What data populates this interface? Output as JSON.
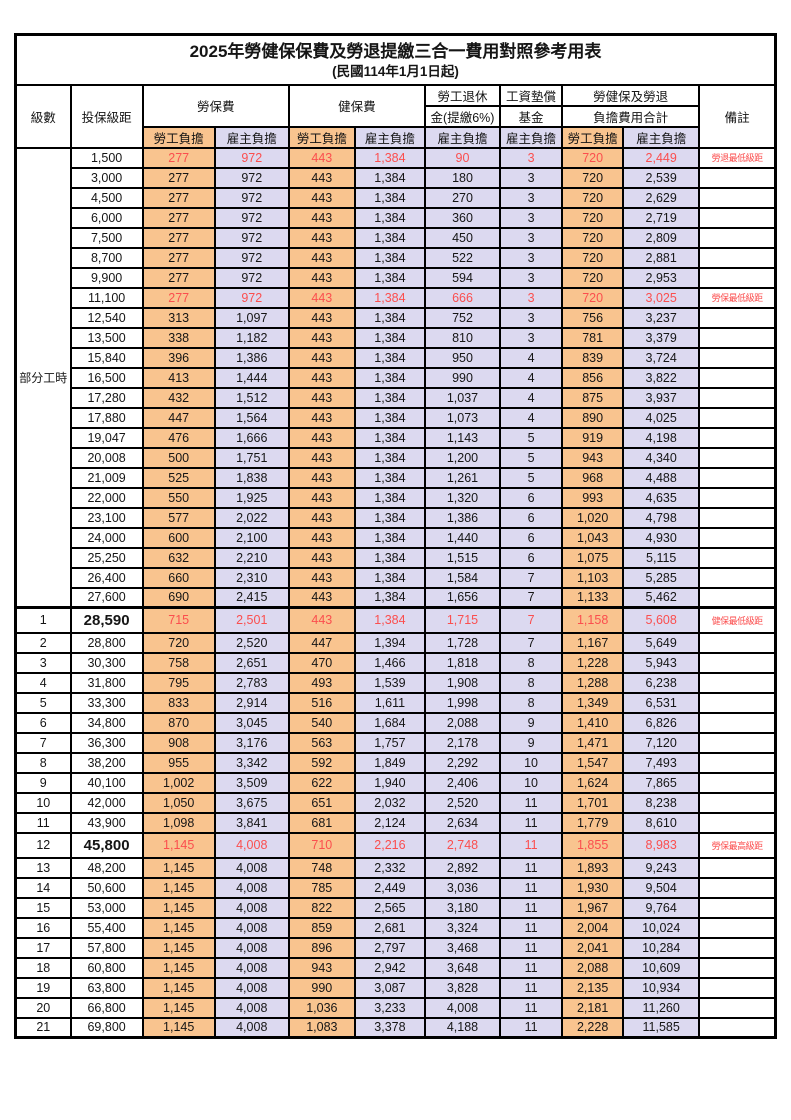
{
  "page": {
    "title": "2025年勞健保保費及勞退提繳三合一費用對照參考用表",
    "subtitle": "(民國114年1月1日起)"
  },
  "header": {
    "level": "級數",
    "bracket": "投保級距",
    "labor_fee": "勞保費",
    "health_fee": "健保費",
    "pension_line1": "勞工退休",
    "pension_line2": "金(提繳6%)",
    "wage_fund_line1": "工資墊償",
    "wage_fund_line2": "基金",
    "total_line1": "勞健保及勞退",
    "total_line2": "負擔費用合計",
    "remark": "備註",
    "employee": "勞工負擔",
    "employer": "雇主負擔"
  },
  "part_time_label": "部分工時",
  "colors": {
    "employee_bg": "#f9c48f",
    "employer_bg": "#dcd9f0",
    "highlight_text": "#fb4e4e",
    "border": "#000000"
  },
  "rows": [
    {
      "level": "",
      "bracket": "1,500",
      "labor_emp": "277",
      "labor_er": "972",
      "health_emp": "443",
      "health_er": "1,384",
      "pension": "90",
      "fund": "3",
      "total_emp": "720",
      "total_er": "2,449",
      "remark": "勞退最低級距",
      "highlight": true,
      "emphasis": false
    },
    {
      "level": "",
      "bracket": "3,000",
      "labor_emp": "277",
      "labor_er": "972",
      "health_emp": "443",
      "health_er": "1,384",
      "pension": "180",
      "fund": "3",
      "total_emp": "720",
      "total_er": "2,539",
      "remark": "",
      "highlight": false,
      "emphasis": false
    },
    {
      "level": "",
      "bracket": "4,500",
      "labor_emp": "277",
      "labor_er": "972",
      "health_emp": "443",
      "health_er": "1,384",
      "pension": "270",
      "fund": "3",
      "total_emp": "720",
      "total_er": "2,629",
      "remark": "",
      "highlight": false,
      "emphasis": false
    },
    {
      "level": "",
      "bracket": "6,000",
      "labor_emp": "277",
      "labor_er": "972",
      "health_emp": "443",
      "health_er": "1,384",
      "pension": "360",
      "fund": "3",
      "total_emp": "720",
      "total_er": "2,719",
      "remark": "",
      "highlight": false,
      "emphasis": false
    },
    {
      "level": "",
      "bracket": "7,500",
      "labor_emp": "277",
      "labor_er": "972",
      "health_emp": "443",
      "health_er": "1,384",
      "pension": "450",
      "fund": "3",
      "total_emp": "720",
      "total_er": "2,809",
      "remark": "",
      "highlight": false,
      "emphasis": false
    },
    {
      "level": "",
      "bracket": "8,700",
      "labor_emp": "277",
      "labor_er": "972",
      "health_emp": "443",
      "health_er": "1,384",
      "pension": "522",
      "fund": "3",
      "total_emp": "720",
      "total_er": "2,881",
      "remark": "",
      "highlight": false,
      "emphasis": false
    },
    {
      "level": "",
      "bracket": "9,900",
      "labor_emp": "277",
      "labor_er": "972",
      "health_emp": "443",
      "health_er": "1,384",
      "pension": "594",
      "fund": "3",
      "total_emp": "720",
      "total_er": "2,953",
      "remark": "",
      "highlight": false,
      "emphasis": false
    },
    {
      "level": "",
      "bracket": "11,100",
      "labor_emp": "277",
      "labor_er": "972",
      "health_emp": "443",
      "health_er": "1,384",
      "pension": "666",
      "fund": "3",
      "total_emp": "720",
      "total_er": "3,025",
      "remark": "勞保最低級距",
      "highlight": true,
      "emphasis": false
    },
    {
      "level": "",
      "bracket": "12,540",
      "labor_emp": "313",
      "labor_er": "1,097",
      "health_emp": "443",
      "health_er": "1,384",
      "pension": "752",
      "fund": "3",
      "total_emp": "756",
      "total_er": "3,237",
      "remark": "",
      "highlight": false,
      "emphasis": false
    },
    {
      "level": "",
      "bracket": "13,500",
      "labor_emp": "338",
      "labor_er": "1,182",
      "health_emp": "443",
      "health_er": "1,384",
      "pension": "810",
      "fund": "3",
      "total_emp": "781",
      "total_er": "3,379",
      "remark": "",
      "highlight": false,
      "emphasis": false
    },
    {
      "level": "",
      "bracket": "15,840",
      "labor_emp": "396",
      "labor_er": "1,386",
      "health_emp": "443",
      "health_er": "1,384",
      "pension": "950",
      "fund": "4",
      "total_emp": "839",
      "total_er": "3,724",
      "remark": "",
      "highlight": false,
      "emphasis": false
    },
    {
      "level": "",
      "bracket": "16,500",
      "labor_emp": "413",
      "labor_er": "1,444",
      "health_emp": "443",
      "health_er": "1,384",
      "pension": "990",
      "fund": "4",
      "total_emp": "856",
      "total_er": "3,822",
      "remark": "",
      "highlight": false,
      "emphasis": false
    },
    {
      "level": "",
      "bracket": "17,280",
      "labor_emp": "432",
      "labor_er": "1,512",
      "health_emp": "443",
      "health_er": "1,384",
      "pension": "1,037",
      "fund": "4",
      "total_emp": "875",
      "total_er": "3,937",
      "remark": "",
      "highlight": false,
      "emphasis": false
    },
    {
      "level": "",
      "bracket": "17,880",
      "labor_emp": "447",
      "labor_er": "1,564",
      "health_emp": "443",
      "health_er": "1,384",
      "pension": "1,073",
      "fund": "4",
      "total_emp": "890",
      "total_er": "4,025",
      "remark": "",
      "highlight": false,
      "emphasis": false
    },
    {
      "level": "",
      "bracket": "19,047",
      "labor_emp": "476",
      "labor_er": "1,666",
      "health_emp": "443",
      "health_er": "1,384",
      "pension": "1,143",
      "fund": "5",
      "total_emp": "919",
      "total_er": "4,198",
      "remark": "",
      "highlight": false,
      "emphasis": false
    },
    {
      "level": "",
      "bracket": "20,008",
      "labor_emp": "500",
      "labor_er": "1,751",
      "health_emp": "443",
      "health_er": "1,384",
      "pension": "1,200",
      "fund": "5",
      "total_emp": "943",
      "total_er": "4,340",
      "remark": "",
      "highlight": false,
      "emphasis": false
    },
    {
      "level": "",
      "bracket": "21,009",
      "labor_emp": "525",
      "labor_er": "1,838",
      "health_emp": "443",
      "health_er": "1,384",
      "pension": "1,261",
      "fund": "5",
      "total_emp": "968",
      "total_er": "4,488",
      "remark": "",
      "highlight": false,
      "emphasis": false
    },
    {
      "level": "",
      "bracket": "22,000",
      "labor_emp": "550",
      "labor_er": "1,925",
      "health_emp": "443",
      "health_er": "1,384",
      "pension": "1,320",
      "fund": "6",
      "total_emp": "993",
      "total_er": "4,635",
      "remark": "",
      "highlight": false,
      "emphasis": false
    },
    {
      "level": "",
      "bracket": "23,100",
      "labor_emp": "577",
      "labor_er": "2,022",
      "health_emp": "443",
      "health_er": "1,384",
      "pension": "1,386",
      "fund": "6",
      "total_emp": "1,020",
      "total_er": "4,798",
      "remark": "",
      "highlight": false,
      "emphasis": false
    },
    {
      "level": "",
      "bracket": "24,000",
      "labor_emp": "600",
      "labor_er": "2,100",
      "health_emp": "443",
      "health_er": "1,384",
      "pension": "1,440",
      "fund": "6",
      "total_emp": "1,043",
      "total_er": "4,930",
      "remark": "",
      "highlight": false,
      "emphasis": false
    },
    {
      "level": "",
      "bracket": "25,250",
      "labor_emp": "632",
      "labor_er": "2,210",
      "health_emp": "443",
      "health_er": "1,384",
      "pension": "1,515",
      "fund": "6",
      "total_emp": "1,075",
      "total_er": "5,115",
      "remark": "",
      "highlight": false,
      "emphasis": false
    },
    {
      "level": "",
      "bracket": "26,400",
      "labor_emp": "660",
      "labor_er": "2,310",
      "health_emp": "443",
      "health_er": "1,384",
      "pension": "1,584",
      "fund": "7",
      "total_emp": "1,103",
      "total_er": "5,285",
      "remark": "",
      "highlight": false,
      "emphasis": false
    },
    {
      "level": "",
      "bracket": "27,600",
      "labor_emp": "690",
      "labor_er": "2,415",
      "health_emp": "443",
      "health_er": "1,384",
      "pension": "1,656",
      "fund": "7",
      "total_emp": "1,133",
      "total_er": "5,462",
      "remark": "",
      "highlight": false,
      "emphasis": false
    },
    {
      "level": "1",
      "bracket": "28,590",
      "labor_emp": "715",
      "labor_er": "2,501",
      "health_emp": "443",
      "health_er": "1,384",
      "pension": "1,715",
      "fund": "7",
      "total_emp": "1,158",
      "total_er": "5,608",
      "remark": "健保最低級距",
      "highlight": true,
      "emphasis": true
    },
    {
      "level": "2",
      "bracket": "28,800",
      "labor_emp": "720",
      "labor_er": "2,520",
      "health_emp": "447",
      "health_er": "1,394",
      "pension": "1,728",
      "fund": "7",
      "total_emp": "1,167",
      "total_er": "5,649",
      "remark": "",
      "highlight": false,
      "emphasis": false
    },
    {
      "level": "3",
      "bracket": "30,300",
      "labor_emp": "758",
      "labor_er": "2,651",
      "health_emp": "470",
      "health_er": "1,466",
      "pension": "1,818",
      "fund": "8",
      "total_emp": "1,228",
      "total_er": "5,943",
      "remark": "",
      "highlight": false,
      "emphasis": false
    },
    {
      "level": "4",
      "bracket": "31,800",
      "labor_emp": "795",
      "labor_er": "2,783",
      "health_emp": "493",
      "health_er": "1,539",
      "pension": "1,908",
      "fund": "8",
      "total_emp": "1,288",
      "total_er": "6,238",
      "remark": "",
      "highlight": false,
      "emphasis": false
    },
    {
      "level": "5",
      "bracket": "33,300",
      "labor_emp": "833",
      "labor_er": "2,914",
      "health_emp": "516",
      "health_er": "1,611",
      "pension": "1,998",
      "fund": "8",
      "total_emp": "1,349",
      "total_er": "6,531",
      "remark": "",
      "highlight": false,
      "emphasis": false
    },
    {
      "level": "6",
      "bracket": "34,800",
      "labor_emp": "870",
      "labor_er": "3,045",
      "health_emp": "540",
      "health_er": "1,684",
      "pension": "2,088",
      "fund": "9",
      "total_emp": "1,410",
      "total_er": "6,826",
      "remark": "",
      "highlight": false,
      "emphasis": false
    },
    {
      "level": "7",
      "bracket": "36,300",
      "labor_emp": "908",
      "labor_er": "3,176",
      "health_emp": "563",
      "health_er": "1,757",
      "pension": "2,178",
      "fund": "9",
      "total_emp": "1,471",
      "total_er": "7,120",
      "remark": "",
      "highlight": false,
      "emphasis": false
    },
    {
      "level": "8",
      "bracket": "38,200",
      "labor_emp": "955",
      "labor_er": "3,342",
      "health_emp": "592",
      "health_er": "1,849",
      "pension": "2,292",
      "fund": "10",
      "total_emp": "1,547",
      "total_er": "7,493",
      "remark": "",
      "highlight": false,
      "emphasis": false
    },
    {
      "level": "9",
      "bracket": "40,100",
      "labor_emp": "1,002",
      "labor_er": "3,509",
      "health_emp": "622",
      "health_er": "1,940",
      "pension": "2,406",
      "fund": "10",
      "total_emp": "1,624",
      "total_er": "7,865",
      "remark": "",
      "highlight": false,
      "emphasis": false
    },
    {
      "level": "10",
      "bracket": "42,000",
      "labor_emp": "1,050",
      "labor_er": "3,675",
      "health_emp": "651",
      "health_er": "2,032",
      "pension": "2,520",
      "fund": "11",
      "total_emp": "1,701",
      "total_er": "8,238",
      "remark": "",
      "highlight": false,
      "emphasis": false
    },
    {
      "level": "11",
      "bracket": "43,900",
      "labor_emp": "1,098",
      "labor_er": "3,841",
      "health_emp": "681",
      "health_er": "2,124",
      "pension": "2,634",
      "fund": "11",
      "total_emp": "1,779",
      "total_er": "8,610",
      "remark": "",
      "highlight": false,
      "emphasis": false
    },
    {
      "level": "12",
      "bracket": "45,800",
      "labor_emp": "1,145",
      "labor_er": "4,008",
      "health_emp": "710",
      "health_er": "2,216",
      "pension": "2,748",
      "fund": "11",
      "total_emp": "1,855",
      "total_er": "8,983",
      "remark": "勞保最高級距",
      "highlight": true,
      "emphasis": true
    },
    {
      "level": "13",
      "bracket": "48,200",
      "labor_emp": "1,145",
      "labor_er": "4,008",
      "health_emp": "748",
      "health_er": "2,332",
      "pension": "2,892",
      "fund": "11",
      "total_emp": "1,893",
      "total_er": "9,243",
      "remark": "",
      "highlight": false,
      "emphasis": false
    },
    {
      "level": "14",
      "bracket": "50,600",
      "labor_emp": "1,145",
      "labor_er": "4,008",
      "health_emp": "785",
      "health_er": "2,449",
      "pension": "3,036",
      "fund": "11",
      "total_emp": "1,930",
      "total_er": "9,504",
      "remark": "",
      "highlight": false,
      "emphasis": false
    },
    {
      "level": "15",
      "bracket": "53,000",
      "labor_emp": "1,145",
      "labor_er": "4,008",
      "health_emp": "822",
      "health_er": "2,565",
      "pension": "3,180",
      "fund": "11",
      "total_emp": "1,967",
      "total_er": "9,764",
      "remark": "",
      "highlight": false,
      "emphasis": false
    },
    {
      "level": "16",
      "bracket": "55,400",
      "labor_emp": "1,145",
      "labor_er": "4,008",
      "health_emp": "859",
      "health_er": "2,681",
      "pension": "3,324",
      "fund": "11",
      "total_emp": "2,004",
      "total_er": "10,024",
      "remark": "",
      "highlight": false,
      "emphasis": false
    },
    {
      "level": "17",
      "bracket": "57,800",
      "labor_emp": "1,145",
      "labor_er": "4,008",
      "health_emp": "896",
      "health_er": "2,797",
      "pension": "3,468",
      "fund": "11",
      "total_emp": "2,041",
      "total_er": "10,284",
      "remark": "",
      "highlight": false,
      "emphasis": false
    },
    {
      "level": "18",
      "bracket": "60,800",
      "labor_emp": "1,145",
      "labor_er": "4,008",
      "health_emp": "943",
      "health_er": "2,942",
      "pension": "3,648",
      "fund": "11",
      "total_emp": "2,088",
      "total_er": "10,609",
      "remark": "",
      "highlight": false,
      "emphasis": false
    },
    {
      "level": "19",
      "bracket": "63,800",
      "labor_emp": "1,145",
      "labor_er": "4,008",
      "health_emp": "990",
      "health_er": "3,087",
      "pension": "3,828",
      "fund": "11",
      "total_emp": "2,135",
      "total_er": "10,934",
      "remark": "",
      "highlight": false,
      "emphasis": false
    },
    {
      "level": "20",
      "bracket": "66,800",
      "labor_emp": "1,145",
      "labor_er": "4,008",
      "health_emp": "1,036",
      "health_er": "3,233",
      "pension": "4,008",
      "fund": "11",
      "total_emp": "2,181",
      "total_er": "11,260",
      "remark": "",
      "highlight": false,
      "emphasis": false
    },
    {
      "level": "21",
      "bracket": "69,800",
      "labor_emp": "1,145",
      "labor_er": "4,008",
      "health_emp": "1,083",
      "health_er": "3,378",
      "pension": "4,188",
      "fund": "11",
      "total_emp": "2,228",
      "total_er": "11,585",
      "remark": "",
      "highlight": false,
      "emphasis": false
    }
  ]
}
